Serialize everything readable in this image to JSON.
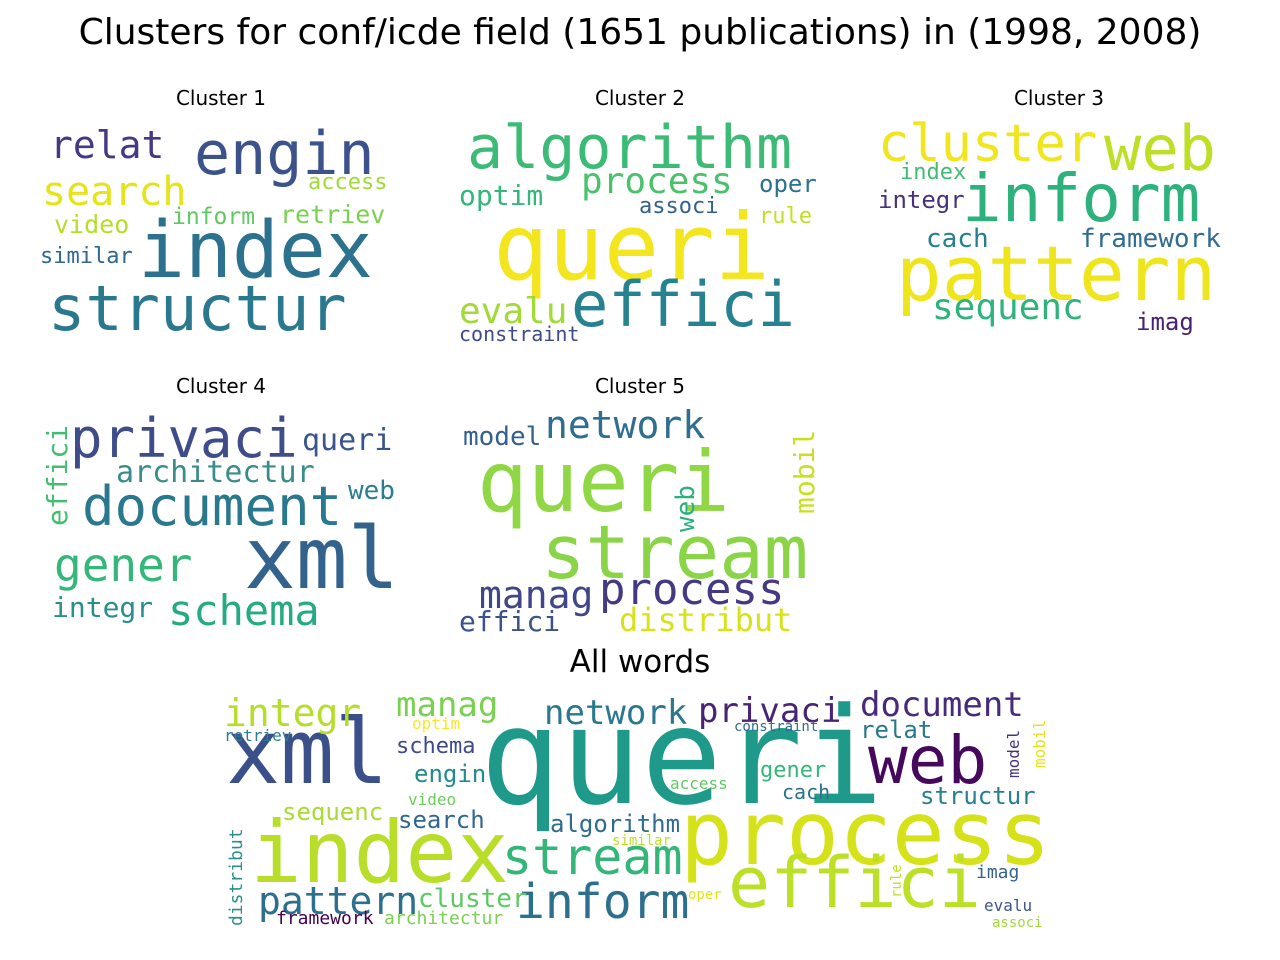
{
  "title": "Clusters for conf/icde field (1651 publications) in (1998, 2008)",
  "chart_data": [
    {
      "type": "wordcloud",
      "title": "Cluster 1",
      "words": [
        {
          "text": "index",
          "color": "#2c718e",
          "weight": 1.0
        },
        {
          "text": "structur",
          "color": "#2a788e",
          "weight": 0.75
        },
        {
          "text": "engin",
          "color": "#3b528b",
          "weight": 0.68
        },
        {
          "text": "search",
          "color": "#e4e419",
          "weight": 0.45
        },
        {
          "text": "relat",
          "color": "#443a83",
          "weight": 0.42
        },
        {
          "text": "retriev",
          "color": "#7ad151",
          "weight": 0.3
        },
        {
          "text": "video",
          "color": "#b5de2b",
          "weight": 0.3
        },
        {
          "text": "inform",
          "color": "#5ec962",
          "weight": 0.28
        },
        {
          "text": "access",
          "color": "#a0da39",
          "weight": 0.26
        },
        {
          "text": "similar",
          "color": "#31668e",
          "weight": 0.25
        }
      ]
    },
    {
      "type": "wordcloud",
      "title": "Cluster 2",
      "words": [
        {
          "text": "queri",
          "color": "#f3e51e",
          "weight": 1.0
        },
        {
          "text": "effici",
          "color": "#26828e",
          "weight": 0.78
        },
        {
          "text": "algorithm",
          "color": "#3bbb75",
          "weight": 0.72
        },
        {
          "text": "process",
          "color": "#4ac16d",
          "weight": 0.45
        },
        {
          "text": "evalu",
          "color": "#a2da37",
          "weight": 0.4
        },
        {
          "text": "optim",
          "color": "#35b779",
          "weight": 0.32
        },
        {
          "text": "oper",
          "color": "#2c718e",
          "weight": 0.28
        },
        {
          "text": "associ",
          "color": "#355f8d",
          "weight": 0.27
        },
        {
          "text": "rule",
          "color": "#c2df23",
          "weight": 0.25
        },
        {
          "text": "constraint",
          "color": "#3e4a89",
          "weight": 0.22
        }
      ]
    },
    {
      "type": "wordcloud",
      "title": "Cluster 3",
      "words": [
        {
          "text": "pattern",
          "color": "#efe51c",
          "weight": 1.0
        },
        {
          "text": "inform",
          "color": "#2db27d",
          "weight": 0.82
        },
        {
          "text": "web",
          "color": "#bddf26",
          "weight": 0.78
        },
        {
          "text": "cluster",
          "color": "#f1e51d",
          "weight": 0.65
        },
        {
          "text": "sequenc",
          "color": "#2eb37c",
          "weight": 0.45
        },
        {
          "text": "framework",
          "color": "#2f6c8e",
          "weight": 0.38
        },
        {
          "text": "cach",
          "color": "#277f8e",
          "weight": 0.36
        },
        {
          "text": "imag",
          "color": "#482173",
          "weight": 0.35
        },
        {
          "text": "integr",
          "color": "#46327e",
          "weight": 0.32
        },
        {
          "text": "index",
          "color": "#40bd72",
          "weight": 0.3
        }
      ]
    },
    {
      "type": "wordcloud",
      "title": "Cluster 4",
      "words": [
        {
          "text": "xml",
          "color": "#33638d",
          "weight": 1.0
        },
        {
          "text": "document",
          "color": "#2a788e",
          "weight": 0.66
        },
        {
          "text": "privaci",
          "color": "#3e4c8a",
          "weight": 0.66
        },
        {
          "text": "gener",
          "color": "#35b779",
          "weight": 0.56
        },
        {
          "text": "schema",
          "color": "#25ab82",
          "weight": 0.5
        },
        {
          "text": "architectur",
          "color": "#3a8c8b",
          "weight": 0.4
        },
        {
          "text": "queri",
          "color": "#3a548c",
          "weight": 0.38
        },
        {
          "text": "integr",
          "color": "#2a8f8c",
          "weight": 0.34
        },
        {
          "text": "effici",
          "color": "#42be71",
          "weight": 0.32
        },
        {
          "text": "web",
          "color": "#2c7d8e",
          "weight": 0.3
        }
      ]
    },
    {
      "type": "wordcloud",
      "title": "Cluster 5",
      "words": [
        {
          "text": "queri",
          "color": "#8fd744",
          "weight": 1.0
        },
        {
          "text": "stream",
          "color": "#8ad547",
          "weight": 0.88
        },
        {
          "text": "process",
          "color": "#443983",
          "weight": 0.55
        },
        {
          "text": "network",
          "color": "#2e6e8e",
          "weight": 0.5
        },
        {
          "text": "manag",
          "color": "#3f4788",
          "weight": 0.5
        },
        {
          "text": "distribut",
          "color": "#d8e219",
          "weight": 0.45
        },
        {
          "text": "effici",
          "color": "#3b528b",
          "weight": 0.4
        },
        {
          "text": "mobil",
          "color": "#c8e020",
          "weight": 0.38
        },
        {
          "text": "model",
          "color": "#355f8d",
          "weight": 0.33
        },
        {
          "text": "web",
          "color": "#2ab07f",
          "weight": 0.33
        }
      ]
    },
    {
      "type": "wordcloud",
      "title": "All words",
      "words": [
        {
          "text": "queri",
          "color": "#1f9a8a",
          "weight": 1.0
        },
        {
          "text": "process",
          "color": "#d5e21a",
          "weight": 0.65
        },
        {
          "text": "index",
          "color": "#b8de29",
          "weight": 0.62
        },
        {
          "text": "xml",
          "color": "#3b4f8a",
          "weight": 0.6
        },
        {
          "text": "effici",
          "color": "#bcdf27",
          "weight": 0.52
        },
        {
          "text": "web",
          "color": "#46085c",
          "weight": 0.5
        },
        {
          "text": "stream",
          "color": "#34b679",
          "weight": 0.45
        },
        {
          "text": "inform",
          "color": "#2d708e",
          "weight": 0.42
        },
        {
          "text": "pattern",
          "color": "#2d708e",
          "weight": 0.32
        },
        {
          "text": "integr",
          "color": "#b5de2b",
          "weight": 0.32
        },
        {
          "text": "document",
          "color": "#472a7a",
          "weight": 0.3
        },
        {
          "text": "manag",
          "color": "#7ad151",
          "weight": 0.3
        },
        {
          "text": "network",
          "color": "#2a788e",
          "weight": 0.3
        },
        {
          "text": "privaci",
          "color": "#482475",
          "weight": 0.3
        },
        {
          "text": "cluster",
          "color": "#5ec962",
          "weight": 0.22
        },
        {
          "text": "algorithm",
          "color": "#2f6c8e",
          "weight": 0.22
        },
        {
          "text": "structur",
          "color": "#277f8e",
          "weight": 0.22
        },
        {
          "text": "search",
          "color": "#31668e",
          "weight": 0.22
        },
        {
          "text": "sequenc",
          "color": "#a8db34",
          "weight": 0.2
        },
        {
          "text": "engin",
          "color": "#238a8d",
          "weight": 0.2
        },
        {
          "text": "relat",
          "color": "#2a788e",
          "weight": 0.2
        },
        {
          "text": "schema",
          "color": "#3e4a89",
          "weight": 0.19
        },
        {
          "text": "gener",
          "color": "#35b779",
          "weight": 0.19
        },
        {
          "text": "cach",
          "color": "#2c718e",
          "weight": 0.18
        },
        {
          "text": "framework",
          "color": "#440154",
          "weight": 0.17
        },
        {
          "text": "architectur",
          "color": "#7ad151",
          "weight": 0.17
        },
        {
          "text": "imag",
          "color": "#33638d",
          "weight": 0.17
        },
        {
          "text": "evalu",
          "color": "#3a548c",
          "weight": 0.17
        },
        {
          "text": "distribut",
          "color": "#2a8f8c",
          "weight": 0.16
        },
        {
          "text": "video",
          "color": "#6ccd5a",
          "weight": 0.15
        },
        {
          "text": "access",
          "color": "#5ec962",
          "weight": 0.14
        },
        {
          "text": "retriev",
          "color": "#2c7d8e",
          "weight": 0.14
        },
        {
          "text": "optim",
          "color": "#fde725",
          "weight": 0.14
        },
        {
          "text": "model",
          "color": "#46327e",
          "weight": 0.14
        },
        {
          "text": "mobil",
          "color": "#e5e419",
          "weight": 0.14
        },
        {
          "text": "similar",
          "color": "#bddf26",
          "weight": 0.13
        },
        {
          "text": "rule",
          "color": "#c2df23",
          "weight": 0.13
        },
        {
          "text": "oper",
          "color": "#e2e418",
          "weight": 0.12
        },
        {
          "text": "constraint",
          "color": "#2f6c8e",
          "weight": 0.12
        },
        {
          "text": "associ",
          "color": "#a0da39",
          "weight": 0.12
        }
      ]
    }
  ]
}
